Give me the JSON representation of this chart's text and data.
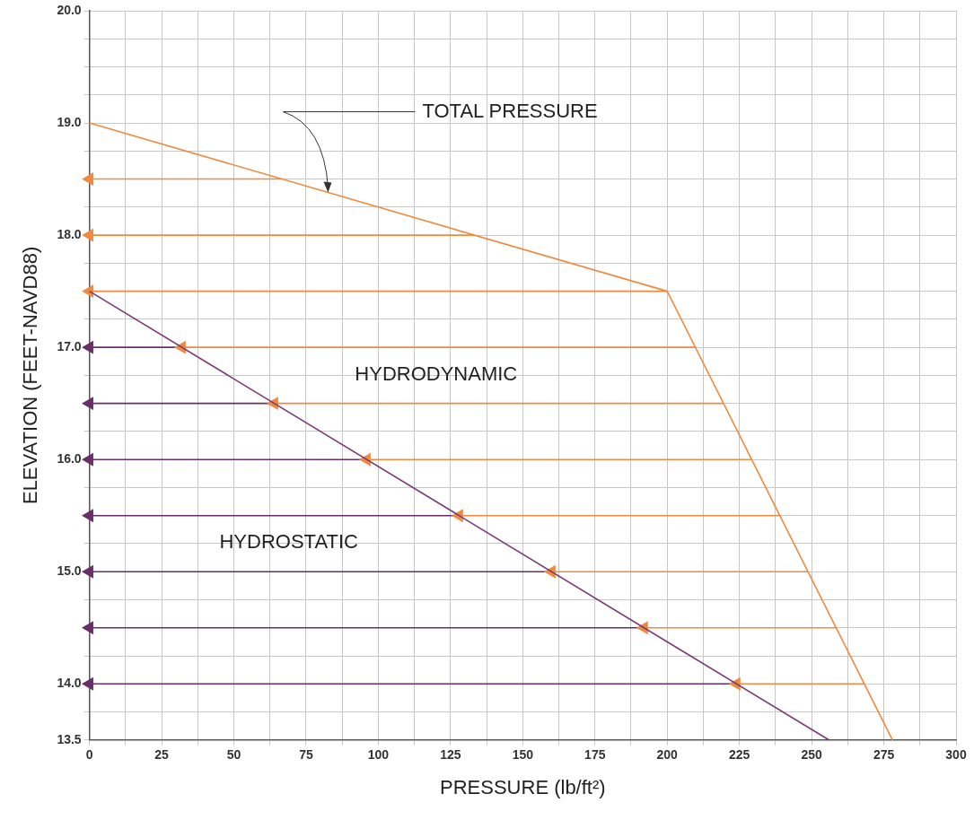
{
  "chart_data": {
    "type": "line",
    "xlabel": "PRESSURE (lb/ft²)",
    "ylabel": "ELEVATION (FEET-NAVD88)",
    "xlim": [
      0,
      300
    ],
    "ylim": [
      13.5,
      20
    ],
    "xticks": [
      0,
      {
        "value": 12.5,
        "label": null
      },
      25,
      {
        "value": 37.5,
        "label": null
      },
      50,
      {
        "value": 62.5,
        "label": null
      },
      75,
      {
        "value": 87.5,
        "label": null
      },
      100,
      {
        "value": 112.5,
        "label": null
      },
      125,
      {
        "value": 137.5,
        "label": null
      },
      150,
      {
        "value": 162.5,
        "label": null
      },
      175,
      {
        "value": 187.5,
        "label": null
      },
      200,
      {
        "value": 212.5,
        "label": null
      },
      225,
      {
        "value": 237.5,
        "label": null
      },
      250,
      {
        "value": 262.5,
        "label": null
      },
      275,
      {
        "value": 287.5,
        "label": null
      },
      300
    ],
    "yticks": [
      {
        "value": 13.5,
        "label": "13.5"
      },
      {
        "value": 13.75,
        "label": null
      },
      {
        "value": 14,
        "label": "14.0"
      },
      {
        "value": 14.25,
        "label": null
      },
      {
        "value": 14.5,
        "label": null
      },
      {
        "value": 14.75,
        "label": null
      },
      {
        "value": 15,
        "label": "15.0"
      },
      {
        "value": 15.25,
        "label": null
      },
      {
        "value": 15.5,
        "label": null
      },
      {
        "value": 15.75,
        "label": null
      },
      {
        "value": 16,
        "label": "16.0"
      },
      {
        "value": 16.25,
        "label": null
      },
      {
        "value": 16.5,
        "label": null
      },
      {
        "value": 16.75,
        "label": null
      },
      {
        "value": 17,
        "label": "17.0"
      },
      {
        "value": 17.25,
        "label": null
      },
      {
        "value": 17.5,
        "label": null
      },
      {
        "value": 17.75,
        "label": null
      },
      {
        "value": 18,
        "label": "18.0"
      },
      {
        "value": 18.25,
        "label": null
      },
      {
        "value": 18.5,
        "label": null
      },
      {
        "value": 18.75,
        "label": null
      },
      {
        "value": 19,
        "label": "19.0"
      },
      {
        "value": 19.25,
        "label": null
      },
      {
        "value": 19.5,
        "label": null
      },
      {
        "value": 19.75,
        "label": null
      },
      {
        "value": 20,
        "label": "20.0"
      }
    ],
    "grid": true,
    "legend": false,
    "line_style": "solid",
    "series": [
      {
        "type": "line",
        "color": "#ef8a3e",
        "marker": "none",
        "x": [
          0,
          200,
          278
        ],
        "values": [
          19,
          17.5,
          13.5
        ]
      },
      {
        "type": "line",
        "color": "#7b3b78",
        "marker": "none",
        "x": [
          0,
          256
        ],
        "values": [
          17.5,
          13.5
        ]
      },
      {
        "type": "line",
        "color": "#ef8a3e",
        "marker": "triangle",
        "x": [
          0,
          66.7
        ],
        "values": [
          18.5,
          18.5
        ]
      },
      {
        "type": "line",
        "color": "#ef8a3e",
        "marker": "triangle",
        "x": [
          0,
          133.3
        ],
        "values": [
          18,
          18
        ]
      },
      {
        "type": "line",
        "color": "#ef8a3e",
        "marker": "triangle",
        "x": [
          0,
          200
        ],
        "values": [
          17.5,
          17.5
        ]
      },
      {
        "type": "line",
        "color": "#ef8a3e",
        "marker": "triangle",
        "x": [
          32,
          210
        ],
        "values": [
          17,
          17
        ]
      },
      {
        "type": "line",
        "color": "#ef8a3e",
        "marker": "triangle",
        "x": [
          64,
          219.5
        ],
        "values": [
          16.5,
          16.5
        ]
      },
      {
        "type": "line",
        "color": "#ef8a3e",
        "marker": "triangle",
        "x": [
          96,
          229
        ],
        "values": [
          16,
          16
        ]
      },
      {
        "type": "line",
        "color": "#ef8a3e",
        "marker": "triangle",
        "x": [
          128,
          239
        ],
        "values": [
          15.5,
          15.5
        ]
      },
      {
        "type": "line",
        "color": "#ef8a3e",
        "marker": "triangle",
        "x": [
          160,
          249
        ],
        "values": [
          15,
          15
        ]
      },
      {
        "type": "line",
        "color": "#ef8a3e",
        "marker": "triangle",
        "x": [
          192,
          258.5
        ],
        "values": [
          14.5,
          14.5
        ]
      },
      {
        "type": "line",
        "color": "#ef8a3e",
        "marker": "triangle",
        "x": [
          224,
          268
        ],
        "values": [
          14,
          14
        ]
      },
      {
        "type": "line",
        "color": "#6a2e6a",
        "marker": "triangle",
        "x": [
          0,
          32
        ],
        "values": [
          17,
          17
        ]
      },
      {
        "type": "line",
        "color": "#6a2e6a",
        "marker": "triangle",
        "x": [
          0,
          64
        ],
        "values": [
          16.5,
          16.5
        ]
      },
      {
        "type": "line",
        "color": "#6a2e6a",
        "marker": "triangle",
        "x": [
          0,
          96
        ],
        "values": [
          16,
          16
        ]
      },
      {
        "type": "line",
        "color": "#6a2e6a",
        "marker": "triangle",
        "x": [
          0,
          128
        ],
        "values": [
          15.5,
          15.5
        ]
      },
      {
        "type": "line",
        "color": "#6a2e6a",
        "marker": "triangle",
        "x": [
          0,
          160
        ],
        "values": [
          15,
          15
        ]
      },
      {
        "type": "line",
        "color": "#6a2e6a",
        "marker": "triangle",
        "x": [
          0,
          192
        ],
        "values": [
          14.5,
          14.5
        ]
      },
      {
        "type": "line",
        "color": "#6a2e6a",
        "marker": "triangle",
        "x": [
          0,
          224
        ],
        "values": [
          14,
          14
        ]
      }
    ],
    "annotations": [
      {
        "text": "TOTAL PRESSURE",
        "x": 82.6,
        "y": 18.38
      },
      "HYDRODYNAMIC",
      "HYDROSTATIC"
    ]
  }
}
